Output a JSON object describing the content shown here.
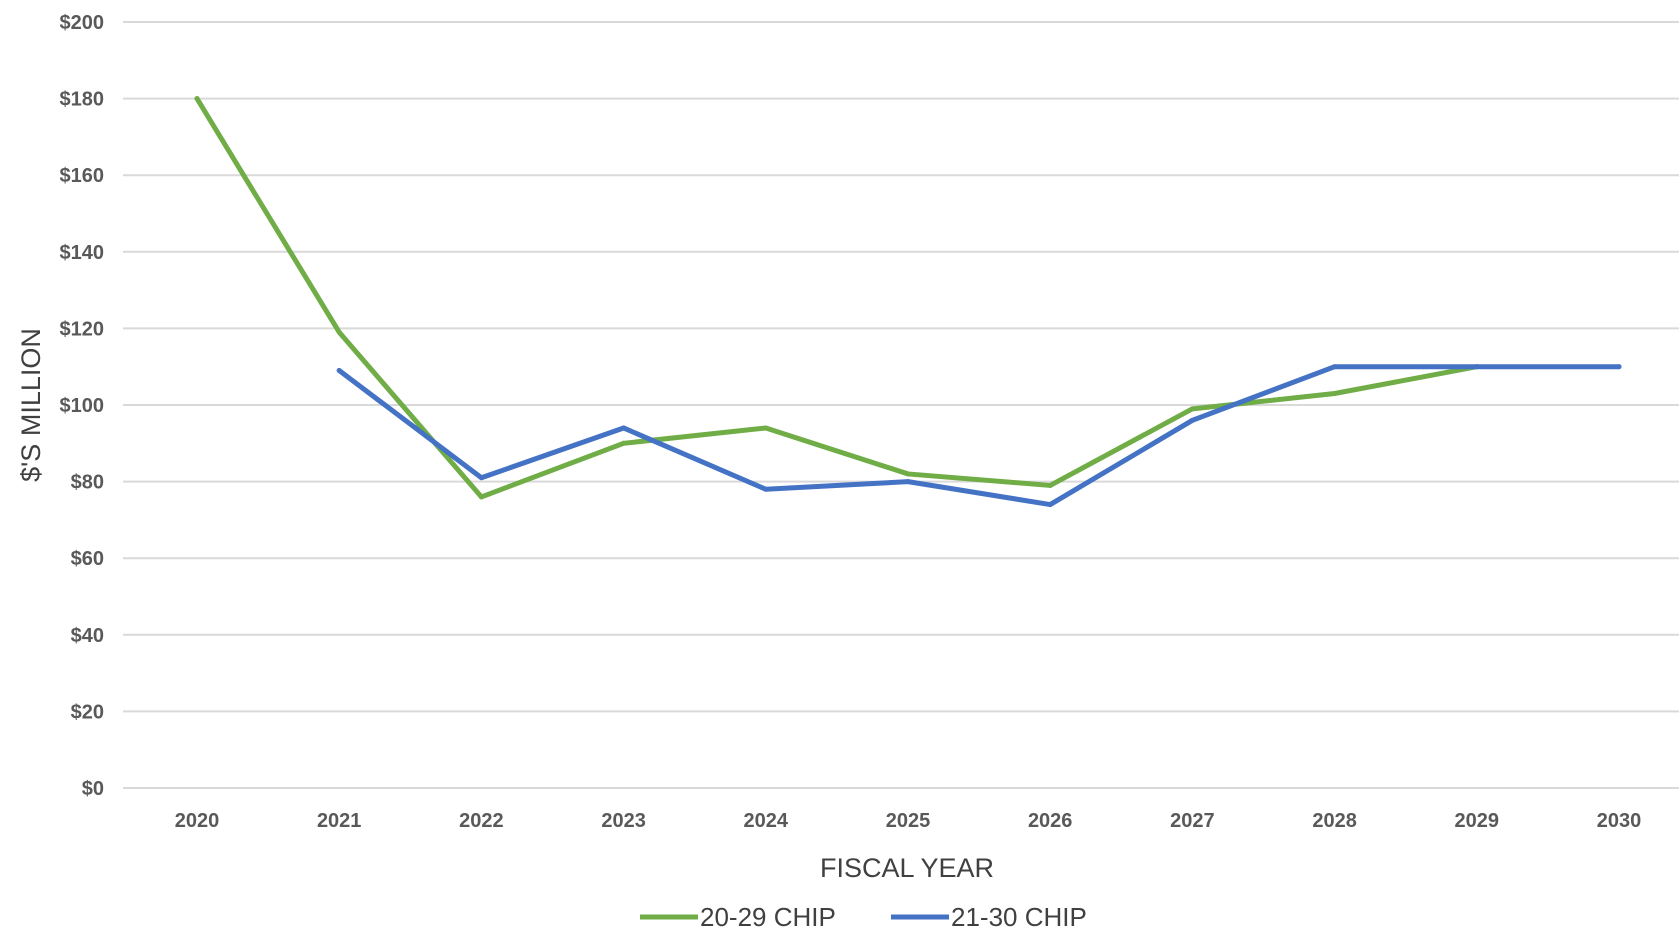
{
  "chart_data": {
    "type": "line",
    "title": "",
    "xlabel": "FISCAL YEAR",
    "ylabel": "$'S MILLION",
    "categories": [
      "2020",
      "2021",
      "2022",
      "2023",
      "2024",
      "2025",
      "2026",
      "2027",
      "2028",
      "2029",
      "2030"
    ],
    "y_ticks": [
      "$0",
      "$20",
      "$40",
      "$60",
      "$80",
      "$100",
      "$120",
      "$140",
      "$160",
      "$180",
      "$200"
    ],
    "ylim": [
      0,
      200
    ],
    "grid": true,
    "legend_position": "bottom",
    "series": [
      {
        "name": "20-29 CHIP",
        "color": "#70ad47",
        "values": [
          180,
          119,
          76,
          90,
          94,
          82,
          79,
          99,
          103,
          110,
          null
        ]
      },
      {
        "name": "21-30 CHIP",
        "color": "#4472c4",
        "values": [
          null,
          109,
          81,
          94,
          78,
          80,
          74,
          96,
          110,
          110,
          110
        ]
      }
    ]
  }
}
